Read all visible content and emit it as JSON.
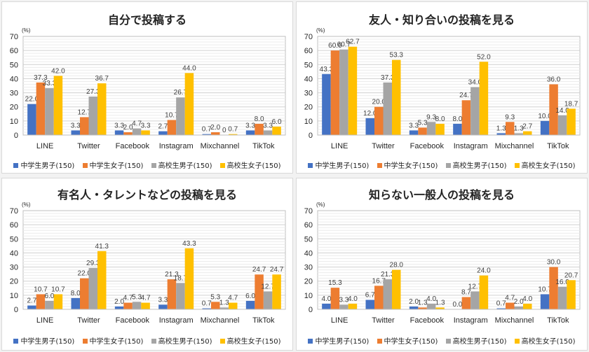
{
  "chart_data": [
    {
      "type": "bar",
      "title": "自分で投稿する",
      "ylabel": "(%)",
      "xlabel": "",
      "ylim": [
        0,
        70
      ],
      "yticks": [
        0,
        10,
        20,
        30,
        40,
        50,
        60,
        70
      ],
      "grid": true,
      "legend_position": "bottom",
      "categories": [
        "LINE",
        "Twitter",
        "Facebook",
        "Instagram",
        "Mixchannel",
        "TikTok"
      ],
      "series": [
        {
          "name": "中学生男子(150)",
          "values": [
            22.0,
            3.3,
            3.3,
            2.7,
            0.7,
            3.3
          ],
          "labels": [
            "22.0",
            "3.3",
            "3.3",
            "2.7",
            "0.7",
            "3.3"
          ]
        },
        {
          "name": "中学生女子(150)",
          "values": [
            37.3,
            12.7,
            2.0,
            10.7,
            2.0,
            8.0
          ],
          "labels": [
            "37.3",
            "12.7",
            "2.0",
            "10.7",
            "2.0",
            "8.0"
          ]
        },
        {
          "name": "高校生男子(150)",
          "values": [
            33.3,
            27.3,
            4.7,
            26.7,
            0,
            3.3
          ],
          "labels": [
            "33.3",
            "27.3",
            "4.7",
            "26.7",
            "0",
            "3.3"
          ]
        },
        {
          "name": "高校生女子(150)",
          "values": [
            42.0,
            36.7,
            3.3,
            44.0,
            0.7,
            6.0
          ],
          "labels": [
            "42.0",
            "36.7",
            "3.3",
            "44.0",
            "0.7",
            "6.0"
          ]
        }
      ]
    },
    {
      "type": "bar",
      "title": "友人・知り合いの投稿を見る",
      "ylabel": "(%)",
      "xlabel": "",
      "ylim": [
        0,
        70
      ],
      "yticks": [
        0,
        10,
        20,
        30,
        40,
        50,
        60,
        70
      ],
      "grid": true,
      "legend_position": "bottom",
      "categories": [
        "LINE",
        "Twitter",
        "Facebook",
        "Instagram",
        "Mixchannel",
        "TikTok"
      ],
      "series": [
        {
          "name": "中学生男子(150)",
          "values": [
            43.3,
            12.0,
            3.3,
            8.0,
            1.3,
            10.0
          ],
          "labels": [
            "43.3",
            "12.0",
            "3.3",
            "8.0",
            "1.3",
            "10.0"
          ]
        },
        {
          "name": "中学生女子(150)",
          "values": [
            60.0,
            20.0,
            5.3,
            24.7,
            9.3,
            36.0
          ],
          "labels": [
            "60.0",
            "20.0",
            "5.3",
            "24.7",
            "9.3",
            "36.0"
          ]
        },
        {
          "name": "高校生男子(150)",
          "values": [
            60.7,
            37.3,
            9.3,
            34.0,
            1.3,
            14.0
          ],
          "labels": [
            "60.7",
            "37.3",
            "9.3",
            "34.0",
            "1.3",
            "14.0"
          ]
        },
        {
          "name": "高校生女子(150)",
          "values": [
            62.7,
            53.3,
            8.0,
            52.0,
            2.7,
            18.7
          ],
          "labels": [
            "62.7",
            "53.3",
            "8.0",
            "52.0",
            "2.7",
            "18.7"
          ]
        }
      ]
    },
    {
      "type": "bar",
      "title": "有名人・タレントなどの投稿を見る",
      "ylabel": "(%)",
      "xlabel": "",
      "ylim": [
        0,
        70
      ],
      "yticks": [
        0,
        10,
        20,
        30,
        40,
        50,
        60,
        70
      ],
      "grid": true,
      "legend_position": "bottom",
      "categories": [
        "LINE",
        "Twitter",
        "Facebook",
        "Instagram",
        "Mixchannel",
        "TikTok"
      ],
      "series": [
        {
          "name": "中学生男子(150)",
          "values": [
            2.7,
            8.0,
            2.0,
            3.3,
            0.7,
            6.0
          ],
          "labels": [
            "2.7",
            "8.0",
            "2.0",
            "3.3",
            "0.7",
            "6.0"
          ]
        },
        {
          "name": "中学生女子(150)",
          "values": [
            10.7,
            22.0,
            4.7,
            21.3,
            5.3,
            24.7
          ],
          "labels": [
            "10.7",
            "22.0",
            "4.7",
            "21.3",
            "5.3",
            "24.7"
          ]
        },
        {
          "name": "高校生男子(150)",
          "values": [
            6.0,
            29.3,
            5.3,
            18.7,
            1.3,
            12.7
          ],
          "labels": [
            "6.0",
            "29.3",
            "5.3",
            "18.7",
            "1.3",
            "12.7"
          ]
        },
        {
          "name": "高校生女子(150)",
          "values": [
            10.7,
            41.3,
            4.7,
            43.3,
            4.7,
            24.7
          ],
          "labels": [
            "10.7",
            "41.3",
            "4.7",
            "43.3",
            "4.7",
            "24.7"
          ]
        }
      ]
    },
    {
      "type": "bar",
      "title": "知らない一般人の投稿を見る",
      "ylabel": "(%)",
      "xlabel": "",
      "ylim": [
        0,
        70
      ],
      "yticks": [
        0,
        10,
        20,
        30,
        40,
        50,
        60,
        70
      ],
      "grid": true,
      "legend_position": "bottom",
      "categories": [
        "LINE",
        "Twitter",
        "Facebook",
        "Instagram",
        "Mixchannel",
        "TikTok"
      ],
      "series": [
        {
          "name": "中学生男子(150)",
          "values": [
            4.0,
            6.7,
            2.0,
            0.0,
            0.7,
            10.7
          ],
          "labels": [
            "4.0",
            "6.7",
            "2.0",
            "0.0",
            "0.7",
            "10.7"
          ]
        },
        {
          "name": "中学生女子(150)",
          "values": [
            15.3,
            16.7,
            1.3,
            8.7,
            4.7,
            30.0
          ],
          "labels": [
            "15.3",
            "16.7",
            "1.3",
            "8.7",
            "4.7",
            "30.0"
          ]
        },
        {
          "name": "高校生男子(150)",
          "values": [
            3.3,
            21.3,
            4.0,
            12.7,
            2.0,
            16.0
          ],
          "labels": [
            "3.3",
            "21.3",
            "4.0",
            "12.7",
            "2.0",
            "16.0"
          ]
        },
        {
          "name": "高校生女子(150)",
          "values": [
            4.0,
            28.0,
            1.3,
            24.0,
            4.0,
            20.7
          ],
          "labels": [
            "4.0",
            "28.0",
            "1.3",
            "24.0",
            "4.0",
            "20.7"
          ]
        }
      ]
    }
  ],
  "colors": {
    "series": [
      "#4472c4",
      "#ed7d31",
      "#a5a5a5",
      "#ffc000"
    ],
    "gridline": "#d9d9d9",
    "axis_text": "#262626"
  }
}
